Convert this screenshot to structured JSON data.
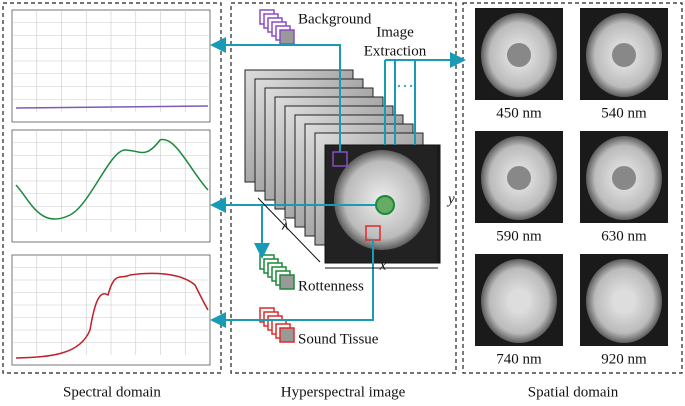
{
  "middle": {
    "background": "Background",
    "image_extraction": [
      "Image",
      "Extraction"
    ],
    "ellipsis": "···",
    "rottenness": "Rottenness",
    "sound_tissue": "Sound Tissue",
    "lambda": "λ",
    "x": "x",
    "y": "y"
  },
  "spatial": {
    "images": [
      {
        "label": "450 nm"
      },
      {
        "label": "540 nm"
      },
      {
        "label": "590 nm"
      },
      {
        "label": "630 nm"
      },
      {
        "label": "740 nm"
      },
      {
        "label": "920 nm"
      }
    ]
  },
  "captions": [
    "Spectral domain",
    "Hyperspectral image",
    "Spatial domain"
  ]
}
